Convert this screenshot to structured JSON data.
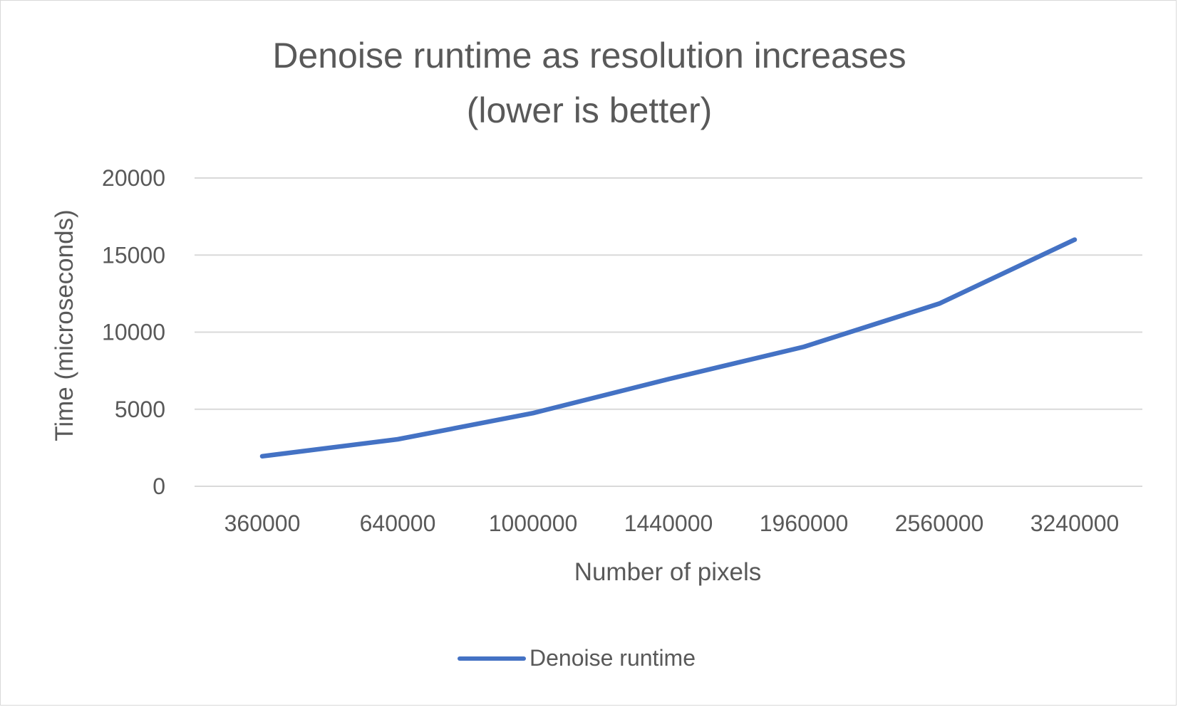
{
  "chart_data": {
    "type": "line",
    "title_lines": [
      "Denoise runtime as resolution increases",
      "(lower is better)"
    ],
    "xlabel": "Number of pixels",
    "ylabel": "Time (microseconds)",
    "categories": [
      "360000",
      "640000",
      "1000000",
      "1440000",
      "1960000",
      "2560000",
      "3240000"
    ],
    "yticks": [
      "0",
      "5000",
      "10000",
      "15000",
      "20000"
    ],
    "ylim": [
      0,
      20000
    ],
    "grid": true,
    "legend_position": "bottom",
    "series": [
      {
        "name": "Denoise runtime",
        "color": "#4472c4",
        "values": [
          1950,
          3050,
          4750,
          6950,
          9050,
          11850,
          16000
        ]
      }
    ]
  }
}
